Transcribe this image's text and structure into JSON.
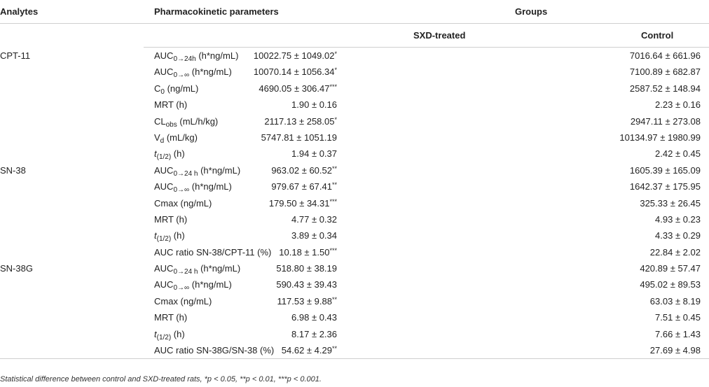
{
  "headers": {
    "analytes": "Analytes",
    "parameters": "Pharmacokinetic parameters",
    "groups": "Groups",
    "treated": "SXD-treated",
    "control": "Control"
  },
  "rows": [
    {
      "analyte": "CPT-11",
      "p_main": "AUC",
      "p_sub": "0→24h",
      "p_unit": " (h*ng/mL)",
      "treated": "10022.75 ± 1049.02",
      "sig": "*",
      "control": "7016.64 ± 661.96"
    },
    {
      "analyte": "",
      "p_main": "AUC",
      "p_sub": "0→∞",
      "p_unit": " (h*ng/mL)",
      "treated": "10070.14 ± 1056.34",
      "sig": "*",
      "control": "7100.89 ± 682.87"
    },
    {
      "analyte": "",
      "p_main": "C",
      "p_sub": "0",
      "p_unit": " (ng/mL)",
      "treated": "4690.05 ± 306.47",
      "sig": "***",
      "control": "2587.52 ± 148.94"
    },
    {
      "analyte": "",
      "p_main": "MRT (h)",
      "p_sub": "",
      "p_unit": "",
      "treated": "1.90 ± 0.16",
      "sig": "",
      "control": "2.23 ± 0.16"
    },
    {
      "analyte": "",
      "p_main": "CL",
      "p_sub": "obs",
      "p_unit": " (mL/h/kg)",
      "treated": "2117.13 ± 258.05",
      "sig": "*",
      "control": "2947.11 ± 273.08"
    },
    {
      "analyte": "",
      "p_main": "V",
      "p_sub": "d",
      "p_unit": " (mL/kg)",
      "treated": "5747.81 ± 1051.19",
      "sig": "",
      "control": "10134.97 ± 1980.99"
    },
    {
      "analyte": "",
      "p_main": "t",
      "p_main_italic": true,
      "p_sub": "(1/2)",
      "p_unit": " (h)",
      "treated": "1.94 ± 0.37",
      "sig": "",
      "control": "2.42 ± 0.45"
    },
    {
      "analyte": "SN-38",
      "p_main": "AUC",
      "p_sub": "0→24 h",
      "p_unit": " (h*ng/mL)",
      "treated": "963.02 ± 60.52",
      "sig": "**",
      "control": "1605.39 ± 165.09"
    },
    {
      "analyte": "",
      "p_main": "AUC",
      "p_sub": "0→∞",
      "p_unit": " (h*ng/mL)",
      "treated": "979.67 ± 67.41",
      "sig": "**",
      "control": "1642.37 ± 175.95"
    },
    {
      "analyte": "",
      "p_main": "Cmax (ng/mL)",
      "p_sub": "",
      "p_unit": "",
      "treated": "179.50 ± 34.31",
      "sig": "***",
      "control": "325.33 ± 26.45"
    },
    {
      "analyte": "",
      "p_main": "MRT (h)",
      "p_sub": "",
      "p_unit": "",
      "treated": "4.77 ± 0.32",
      "sig": "",
      "control": "4.93 ± 0.23"
    },
    {
      "analyte": "",
      "p_main": "t",
      "p_main_italic": true,
      "p_sub": "(1/2)",
      "p_unit": " (h)",
      "treated": "3.89 ± 0.34",
      "sig": "",
      "control": "4.33 ± 0.29"
    },
    {
      "analyte": "",
      "p_main": "AUC ratio SN-38/CPT-11 (%)",
      "p_sub": "",
      "p_unit": "",
      "treated": "10.18 ± 1.50",
      "sig": "***",
      "control": "22.84 ± 2.02"
    },
    {
      "analyte": "SN-38G",
      "p_main": "AUC",
      "p_sub": "0→24 h",
      "p_unit": " (h*ng/mL)",
      "treated": "518.80 ± 38.19",
      "sig": "",
      "control": "420.89 ± 57.47"
    },
    {
      "analyte": "",
      "p_main": "AUC",
      "p_sub": "0→∞",
      "p_unit": " (h*ng/mL)",
      "treated": "590.43 ± 39.43",
      "sig": "",
      "control": "495.02 ± 89.53"
    },
    {
      "analyte": "",
      "p_main": "Cmax (ng/mL)",
      "p_sub": "",
      "p_unit": "",
      "treated": "117.53 ± 9.88",
      "sig": "**",
      "control": "63.03 ± 8.19"
    },
    {
      "analyte": "",
      "p_main": "MRT (h)",
      "p_sub": "",
      "p_unit": "",
      "treated": "6.98 ± 0.43",
      "sig": "",
      "control": "7.51 ± 0.45"
    },
    {
      "analyte": "",
      "p_main": "t",
      "p_main_italic": true,
      "p_sub": "(1/2)",
      "p_unit": " (h)",
      "treated": "8.17 ± 2.36",
      "sig": "",
      "control": "7.66 ± 1.43"
    },
    {
      "analyte": "",
      "p_main": "AUC ratio SN-38G/SN-38 (%)",
      "p_sub": "",
      "p_unit": "",
      "treated": "54.62 ± 4.29",
      "sig": "**",
      "control": "27.69 ± 4.98"
    }
  ],
  "footnote": "Statistical difference between control and SXD-treated rats, *p < 0.05, **p < 0.01, ***p < 0.001."
}
